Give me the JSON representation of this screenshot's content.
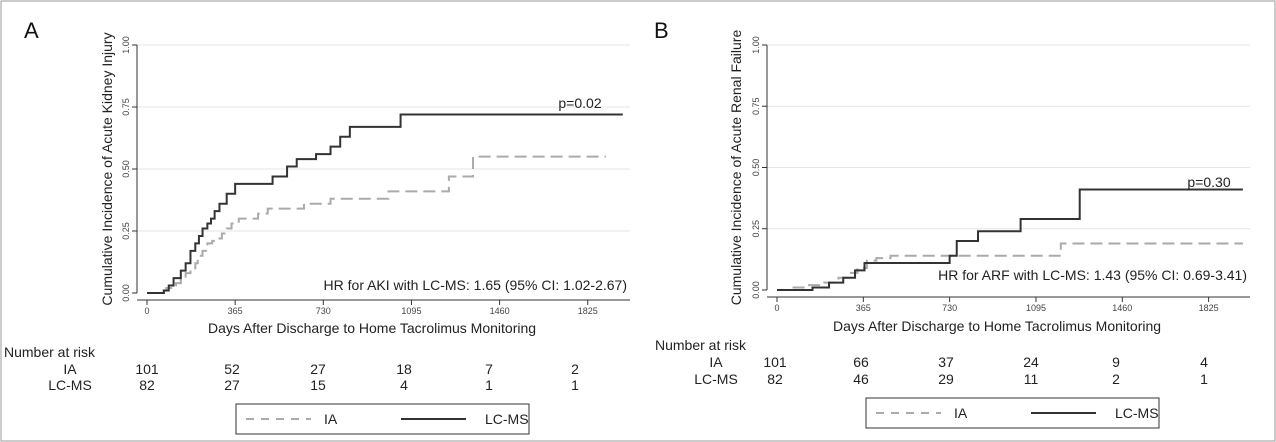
{
  "chart_data": [
    {
      "type": "line",
      "step": true,
      "panel_label": "A",
      "ylabel": "Cumulative Incidence of Acute Kidney Injury",
      "xlabel": "Days After Discharge to Home Tacrolimus Monitoring",
      "xlim": [
        0,
        2000
      ],
      "ylim": [
        0,
        1.0
      ],
      "x_ticks": [
        0,
        365,
        730,
        1095,
        1460,
        1825
      ],
      "y_ticks": [
        "0.00",
        "0.25",
        "0.50",
        "0.75",
        "1.00"
      ],
      "grid": true,
      "pvalue": "p=0.02",
      "annotation": "HR for AKI with LC-MS: 1.65 (95% CI: 1.02-2.67)",
      "risk_table": {
        "title": "Number at risk",
        "rows": [
          {
            "label": "IA",
            "values": [
              "101",
              "52",
              "27",
              "18",
              "7",
              "2"
            ]
          },
          {
            "label": "LC-MS",
            "values": [
              "82",
              "27",
              "15",
              "4",
              "1",
              "1"
            ]
          }
        ]
      },
      "legend": {
        "items": [
          "IA",
          "LC-MS"
        ],
        "placement": "bottom"
      },
      "series": [
        {
          "name": "IA",
          "color": "#aaaaaa",
          "dash": true,
          "points": [
            [
              0,
              0
            ],
            [
              50,
              0.01
            ],
            [
              80,
              0.02
            ],
            [
              100,
              0.03
            ],
            [
              120,
              0.04
            ],
            [
              140,
              0.06
            ],
            [
              160,
              0.08
            ],
            [
              180,
              0.1
            ],
            [
              200,
              0.12
            ],
            [
              210,
              0.15
            ],
            [
              230,
              0.17
            ],
            [
              250,
              0.2
            ],
            [
              270,
              0.21
            ],
            [
              290,
              0.22
            ],
            [
              310,
              0.24
            ],
            [
              330,
              0.26
            ],
            [
              350,
              0.28
            ],
            [
              380,
              0.3
            ],
            [
              460,
              0.32
            ],
            [
              500,
              0.34
            ],
            [
              650,
              0.36
            ],
            [
              760,
              0.38
            ],
            [
              1000,
              0.41
            ],
            [
              1250,
              0.47
            ],
            [
              1350,
              0.55
            ],
            [
              1900,
              0.55
            ]
          ]
        },
        {
          "name": "LC-MS",
          "color": "#333333",
          "dash": false,
          "points": [
            [
              0,
              0
            ],
            [
              70,
              0.01
            ],
            [
              90,
              0.03
            ],
            [
              110,
              0.06
            ],
            [
              140,
              0.09
            ],
            [
              160,
              0.12
            ],
            [
              180,
              0.17
            ],
            [
              200,
              0.2
            ],
            [
              215,
              0.23
            ],
            [
              230,
              0.26
            ],
            [
              250,
              0.28
            ],
            [
              265,
              0.3
            ],
            [
              280,
              0.33
            ],
            [
              300,
              0.36
            ],
            [
              330,
              0.4
            ],
            [
              365,
              0.44
            ],
            [
              520,
              0.47
            ],
            [
              580,
              0.51
            ],
            [
              620,
              0.54
            ],
            [
              700,
              0.56
            ],
            [
              760,
              0.59
            ],
            [
              800,
              0.63
            ],
            [
              840,
              0.67
            ],
            [
              1050,
              0.72
            ],
            [
              1970,
              0.72
            ]
          ]
        }
      ]
    },
    {
      "type": "line",
      "step": true,
      "panel_label": "B",
      "ylabel": "Cumulative Incidence of Acute Renal Failure",
      "xlabel": "Days After Discharge to Home Tacrolimus Monitoring",
      "xlim": [
        0,
        2000
      ],
      "ylim": [
        0,
        1.0
      ],
      "x_ticks": [
        0,
        365,
        730,
        1095,
        1460,
        1825
      ],
      "y_ticks": [
        "0.00",
        "0.25",
        "0.50",
        "0.75",
        "1.00"
      ],
      "grid": true,
      "pvalue": "p=0.30",
      "annotation": "HR for ARF with LC-MS: 1.43 (95% CI: 0.69-3.41)",
      "risk_table": {
        "title": "Number at risk",
        "rows": [
          {
            "label": "IA",
            "values": [
              "101",
              "66",
              "37",
              "24",
              "9",
              "4"
            ]
          },
          {
            "label": "LC-MS",
            "values": [
              "82",
              "46",
              "29",
              "11",
              "2",
              "1"
            ]
          }
        ]
      },
      "legend": {
        "items": [
          "IA",
          "LC-MS"
        ],
        "placement": "bottom"
      },
      "series": [
        {
          "name": "IA",
          "color": "#aaaaaa",
          "dash": true,
          "points": [
            [
              0,
              0
            ],
            [
              60,
              0.01
            ],
            [
              120,
              0.02
            ],
            [
              200,
              0.03
            ],
            [
              260,
              0.05
            ],
            [
              300,
              0.07
            ],
            [
              340,
              0.09
            ],
            [
              380,
              0.12
            ],
            [
              420,
              0.13
            ],
            [
              480,
              0.14
            ],
            [
              1200,
              0.19
            ],
            [
              1970,
              0.19
            ]
          ]
        },
        {
          "name": "LC-MS",
          "color": "#333333",
          "dash": false,
          "points": [
            [
              0,
              0
            ],
            [
              150,
              0.01
            ],
            [
              220,
              0.03
            ],
            [
              280,
              0.05
            ],
            [
              330,
              0.08
            ],
            [
              370,
              0.11
            ],
            [
              730,
              0.14
            ],
            [
              760,
              0.2
            ],
            [
              850,
              0.24
            ],
            [
              1030,
              0.29
            ],
            [
              1280,
              0.41
            ],
            [
              1970,
              0.41
            ]
          ]
        }
      ]
    }
  ]
}
